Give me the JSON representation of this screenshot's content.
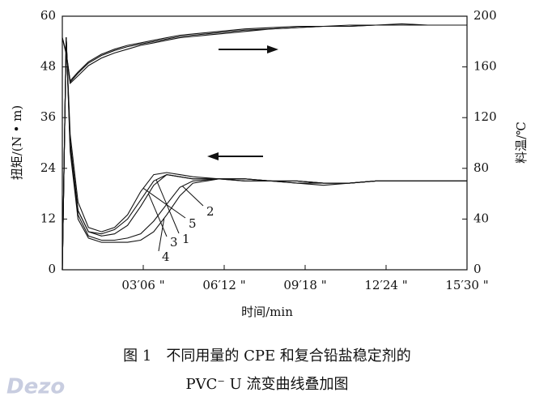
{
  "chart_data": {
    "type": "line",
    "x": [
      0,
      0.15,
      0.3,
      0.6,
      1,
      1.5,
      2,
      2.5,
      3,
      3.5,
      4,
      4.5,
      5,
      6,
      7,
      8,
      9,
      10,
      11,
      12,
      13,
      14,
      15.5
    ],
    "xlim": [
      0,
      15.5
    ],
    "xticks": [
      {
        "value": 3.1,
        "label": "03′06 \""
      },
      {
        "value": 6.2,
        "label": "06′12 \""
      },
      {
        "value": 9.3,
        "label": "09′18 \""
      },
      {
        "value": 12.4,
        "label": "12′24 \""
      },
      {
        "value": 15.5,
        "label": "15′30 \""
      }
    ],
    "ylim": [
      0,
      60
    ],
    "yticks": [
      0,
      12,
      24,
      36,
      48,
      60
    ],
    "y2lim": [
      0,
      200
    ],
    "y2ticks": [
      0,
      40,
      80,
      120,
      160,
      200
    ],
    "xlabel": "时间/min",
    "ylabel": "扭矩/(N • m)",
    "y2label": "料温/℃",
    "series": [
      {
        "name": "1",
        "color": "#111111",
        "values": [
          0,
          55,
          30,
          14,
          9,
          8.5,
          9.5,
          12,
          16.5,
          21,
          22.5,
          22,
          21.5,
          21.5,
          21,
          21,
          20.5,
          20.5,
          20.5,
          21,
          21,
          21,
          21
        ]
      },
      {
        "name": "2",
        "color": "#111111",
        "values": [
          0,
          55,
          29,
          13,
          8,
          7,
          7,
          7.5,
          8.5,
          11.5,
          15.5,
          19.5,
          21,
          21.5,
          21.5,
          21,
          21,
          20.5,
          20.5,
          21,
          21,
          21,
          21
        ]
      },
      {
        "name": "3",
        "color": "#111111",
        "values": [
          0,
          55,
          30,
          14,
          9,
          8,
          8.5,
          10.5,
          15,
          20,
          22.5,
          22,
          21.5,
          21.5,
          21,
          21,
          20.5,
          20,
          20.5,
          21,
          21,
          21,
          21
        ]
      },
      {
        "name": "4",
        "color": "#111111",
        "values": [
          0,
          55,
          28,
          12,
          7.5,
          6.5,
          6.5,
          6.5,
          7,
          9,
          13,
          17.5,
          20.5,
          21.5,
          21.5,
          21,
          21,
          20.5,
          20.5,
          21,
          21,
          21,
          21
        ]
      },
      {
        "name": "5",
        "color": "#111111",
        "values": [
          0,
          55,
          32,
          16,
          10,
          9,
          10,
          13,
          18.5,
          22.5,
          23,
          22.5,
          22,
          21.5,
          21.5,
          21,
          21,
          20.5,
          20.5,
          21,
          21,
          21,
          21
        ]
      },
      {
        "axis": "y2",
        "color": "#111111",
        "values": [
          183,
          172,
          148,
          155,
          163,
          169,
          173,
          176,
          178,
          180,
          182,
          184,
          185,
          187,
          189,
          190,
          191,
          192,
          192,
          193,
          193,
          193,
          193
        ]
      },
      {
        "axis": "y2",
        "color": "#111111",
        "values": [
          183,
          170,
          147,
          153,
          161,
          167,
          171,
          174,
          177,
          179,
          181,
          183,
          184,
          186,
          188,
          190,
          191,
          192,
          192,
          193,
          193,
          193,
          193
        ]
      },
      {
        "axis": "y2",
        "color": "#111111",
        "values": [
          183,
          171,
          149,
          156,
          164,
          170,
          174,
          177,
          179,
          181,
          183,
          185,
          186,
          188,
          190,
          191,
          192,
          192,
          193,
          193,
          194,
          193,
          193
        ]
      }
    ]
  },
  "caption": {
    "line1": "图 1　不同用量的 CPE 和复合铅盐稳定剂的",
    "line2": "PVC⁻ U 流变曲线叠加图"
  },
  "watermark": "Dezo"
}
